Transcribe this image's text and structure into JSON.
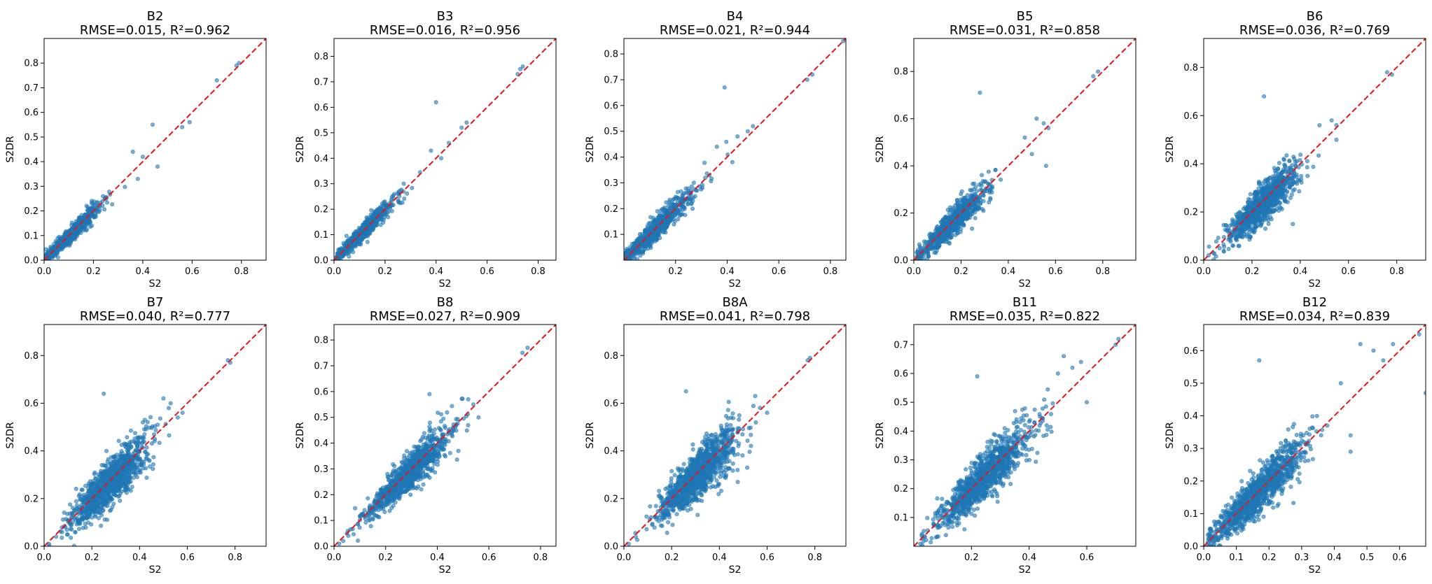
{
  "figure": {
    "type": "scatter-grid",
    "rows": 2,
    "cols": 5
  },
  "chart_data": [
    {
      "type": "scatter",
      "band": "B2",
      "title": "B2",
      "subtitle": "RMSE=0.015, R²=0.962",
      "xlabel": "S2",
      "ylabel": "S2DR",
      "xlim": [
        0,
        0.9
      ],
      "ylim": [
        0,
        0.9
      ],
      "xticks": [
        0.0,
        0.2,
        0.4,
        0.6,
        0.8
      ],
      "yticks": [
        0.0,
        0.1,
        0.2,
        0.3,
        0.4,
        0.5,
        0.6,
        0.7,
        0.8
      ],
      "rmse": 0.015,
      "r2": 0.962,
      "reference_line": "y = x",
      "cluster": {
        "n": 700,
        "x_center": 0.1,
        "x_spread": 0.06,
        "x_min": 0.005,
        "x_max": 0.35,
        "slope": 0.98,
        "noise": 0.022
      },
      "points": [
        {
          "x": 0.44,
          "y": 0.55
        },
        {
          "x": 0.46,
          "y": 0.38
        },
        {
          "x": 0.56,
          "y": 0.54
        },
        {
          "x": 0.59,
          "y": 0.56
        },
        {
          "x": 0.7,
          "y": 0.73
        },
        {
          "x": 0.78,
          "y": 0.79
        },
        {
          "x": 0.79,
          "y": 0.8
        },
        {
          "x": 0.36,
          "y": 0.44
        },
        {
          "x": 0.4,
          "y": 0.42
        },
        {
          "x": 0.38,
          "y": 0.33
        }
      ]
    },
    {
      "type": "scatter",
      "band": "B3",
      "title": "B3",
      "subtitle": "RMSE=0.016, R²=0.956",
      "xlabel": "S2",
      "ylabel": "S2DR",
      "xlim": [
        0,
        0.87
      ],
      "ylim": [
        0,
        0.87
      ],
      "xticks": [
        0.0,
        0.2,
        0.4,
        0.6,
        0.8
      ],
      "yticks": [
        0.0,
        0.1,
        0.2,
        0.3,
        0.4,
        0.5,
        0.6,
        0.7,
        0.8
      ],
      "rmse": 0.016,
      "r2": 0.956,
      "reference_line": "y = x",
      "cluster": {
        "n": 700,
        "x_center": 0.11,
        "x_spread": 0.06,
        "x_min": 0.01,
        "x_max": 0.36,
        "slope": 0.98,
        "noise": 0.022
      },
      "points": [
        {
          "x": 0.4,
          "y": 0.62
        },
        {
          "x": 0.45,
          "y": 0.46
        },
        {
          "x": 0.5,
          "y": 0.52
        },
        {
          "x": 0.52,
          "y": 0.54
        },
        {
          "x": 0.72,
          "y": 0.73
        },
        {
          "x": 0.73,
          "y": 0.75
        },
        {
          "x": 0.74,
          "y": 0.76
        },
        {
          "x": 0.38,
          "y": 0.43
        },
        {
          "x": 0.42,
          "y": 0.4
        }
      ]
    },
    {
      "type": "scatter",
      "band": "B4",
      "title": "B4",
      "subtitle": "RMSE=0.021, R²=0.944",
      "xlabel": "S2",
      "ylabel": "S2DR",
      "xlim": [
        0,
        0.86
      ],
      "ylim": [
        0,
        0.86
      ],
      "xticks": [
        0.2,
        0.4,
        0.6,
        0.8
      ],
      "yticks": [
        0.1,
        0.2,
        0.3,
        0.4,
        0.5,
        0.6,
        0.7,
        0.8
      ],
      "rmse": 0.021,
      "r2": 0.944,
      "reference_line": "y = x",
      "cluster": {
        "n": 700,
        "x_center": 0.12,
        "x_spread": 0.08,
        "x_min": 0.005,
        "x_max": 0.42,
        "slope": 0.98,
        "noise": 0.03
      },
      "points": [
        {
          "x": 0.39,
          "y": 0.67
        },
        {
          "x": 0.44,
          "y": 0.48
        },
        {
          "x": 0.48,
          "y": 0.5
        },
        {
          "x": 0.5,
          "y": 0.52
        },
        {
          "x": 0.71,
          "y": 0.7
        },
        {
          "x": 0.73,
          "y": 0.72
        },
        {
          "x": 0.85,
          "y": 0.85
        },
        {
          "x": 0.42,
          "y": 0.38
        },
        {
          "x": 0.36,
          "y": 0.44
        }
      ]
    },
    {
      "type": "scatter",
      "band": "B5",
      "title": "B5",
      "subtitle": "RMSE=0.031, R²=0.858",
      "xlabel": "S2",
      "ylabel": "S2DR",
      "xlim": [
        0,
        0.94
      ],
      "ylim": [
        0,
        0.94
      ],
      "xticks": [
        0.0,
        0.2,
        0.4,
        0.6,
        0.8
      ],
      "yticks": [
        0.0,
        0.2,
        0.4,
        0.6,
        0.8
      ],
      "rmse": 0.031,
      "r2": 0.858,
      "reference_line": "y = x",
      "cluster": {
        "n": 750,
        "x_center": 0.16,
        "x_spread": 0.07,
        "x_min": 0.01,
        "x_max": 0.45,
        "slope": 0.97,
        "noise": 0.04
      },
      "points": [
        {
          "x": 0.28,
          "y": 0.71
        },
        {
          "x": 0.52,
          "y": 0.6
        },
        {
          "x": 0.55,
          "y": 0.58
        },
        {
          "x": 0.56,
          "y": 0.4
        },
        {
          "x": 0.57,
          "y": 0.56
        },
        {
          "x": 0.76,
          "y": 0.78
        },
        {
          "x": 0.78,
          "y": 0.8
        },
        {
          "x": 0.5,
          "y": 0.45
        },
        {
          "x": 0.47,
          "y": 0.52
        }
      ]
    },
    {
      "type": "scatter",
      "band": "B6",
      "title": "B6",
      "subtitle": "RMSE=0.036, R²=0.769",
      "xlabel": "S2",
      "ylabel": "S2DR",
      "xlim": [
        0,
        0.92
      ],
      "ylim": [
        0,
        0.92
      ],
      "xticks": [
        0.0,
        0.2,
        0.4,
        0.6,
        0.8
      ],
      "yticks": [
        0.0,
        0.2,
        0.4,
        0.6,
        0.8
      ],
      "rmse": 0.036,
      "r2": 0.769,
      "reference_line": "y = x",
      "cluster": {
        "n": 900,
        "x_center": 0.24,
        "x_spread": 0.07,
        "x_min": 0.01,
        "x_max": 0.5,
        "slope": 0.96,
        "noise": 0.045
      },
      "points": [
        {
          "x": 0.25,
          "y": 0.68
        },
        {
          "x": 0.48,
          "y": 0.56
        },
        {
          "x": 0.53,
          "y": 0.58
        },
        {
          "x": 0.55,
          "y": 0.5
        },
        {
          "x": 0.55,
          "y": 0.56
        },
        {
          "x": 0.76,
          "y": 0.78
        },
        {
          "x": 0.78,
          "y": 0.77
        },
        {
          "x": 0.02,
          "y": 0.02
        },
        {
          "x": 0.04,
          "y": 0.03
        }
      ]
    },
    {
      "type": "scatter",
      "band": "B7",
      "title": "B7",
      "subtitle": "RMSE=0.040, R²=0.777",
      "xlabel": "S2",
      "ylabel": "S2DR",
      "xlim": [
        0,
        0.93
      ],
      "ylim": [
        0,
        0.93
      ],
      "xticks": [
        0.0,
        0.2,
        0.4,
        0.6,
        0.8
      ],
      "yticks": [
        0.0,
        0.2,
        0.4,
        0.6,
        0.8
      ],
      "rmse": 0.04,
      "r2": 0.777,
      "reference_line": "y = x",
      "cluster": {
        "n": 1100,
        "x_center": 0.27,
        "x_spread": 0.08,
        "x_min": 0.02,
        "x_max": 0.55,
        "slope": 0.96,
        "noise": 0.05
      },
      "points": [
        {
          "x": 0.25,
          "y": 0.64
        },
        {
          "x": 0.5,
          "y": 0.62
        },
        {
          "x": 0.53,
          "y": 0.6
        },
        {
          "x": 0.56,
          "y": 0.54
        },
        {
          "x": 0.58,
          "y": 0.56
        },
        {
          "x": 0.77,
          "y": 0.78
        },
        {
          "x": 0.78,
          "y": 0.77
        },
        {
          "x": 0.02,
          "y": 0.01
        },
        {
          "x": 0.05,
          "y": 0.04
        }
      ]
    },
    {
      "type": "scatter",
      "band": "B8",
      "title": "B8",
      "subtitle": "RMSE=0.027, R²=0.909",
      "xlabel": "S2",
      "ylabel": "S2DR",
      "xlim": [
        0,
        0.86
      ],
      "ylim": [
        0,
        0.86
      ],
      "xticks": [
        0.0,
        0.2,
        0.4,
        0.6,
        0.8
      ],
      "yticks": [
        0.0,
        0.1,
        0.2,
        0.3,
        0.4,
        0.5,
        0.6,
        0.7,
        0.8
      ],
      "rmse": 0.027,
      "r2": 0.909,
      "reference_line": "y = x",
      "cluster": {
        "n": 1000,
        "x_center": 0.29,
        "x_spread": 0.08,
        "x_min": 0.01,
        "x_max": 0.52,
        "slope": 0.98,
        "noise": 0.035
      },
      "points": [
        {
          "x": 0.37,
          "y": 0.59
        },
        {
          "x": 0.52,
          "y": 0.57
        },
        {
          "x": 0.54,
          "y": 0.55
        },
        {
          "x": 0.56,
          "y": 0.5
        },
        {
          "x": 0.73,
          "y": 0.75
        },
        {
          "x": 0.75,
          "y": 0.77
        },
        {
          "x": 0.02,
          "y": 0.01
        },
        {
          "x": 0.05,
          "y": 0.05
        }
      ]
    },
    {
      "type": "scatter",
      "band": "B8A",
      "title": "B8A",
      "subtitle": "RMSE=0.041, R²=0.798",
      "xlabel": "S2",
      "ylabel": "S2DR",
      "xlim": [
        0,
        0.93
      ],
      "ylim": [
        0,
        0.93
      ],
      "xticks": [
        0.0,
        0.2,
        0.4,
        0.6,
        0.8
      ],
      "yticks": [
        0.0,
        0.2,
        0.4,
        0.6,
        0.8
      ],
      "rmse": 0.041,
      "r2": 0.798,
      "reference_line": "y = x",
      "cluster": {
        "n": 1100,
        "x_center": 0.31,
        "x_spread": 0.08,
        "x_min": 0.02,
        "x_max": 0.56,
        "slope": 0.97,
        "noise": 0.05
      },
      "points": [
        {
          "x": 0.26,
          "y": 0.65
        },
        {
          "x": 0.55,
          "y": 0.63
        },
        {
          "x": 0.57,
          "y": 0.58
        },
        {
          "x": 0.6,
          "y": 0.56
        },
        {
          "x": 0.77,
          "y": 0.78
        },
        {
          "x": 0.78,
          "y": 0.79
        },
        {
          "x": 0.02,
          "y": 0.01
        },
        {
          "x": 0.05,
          "y": 0.04
        }
      ]
    },
    {
      "type": "scatter",
      "band": "B11",
      "title": "B11",
      "subtitle": "RMSE=0.035, R²=0.822",
      "xlabel": "S2",
      "ylabel": "S2DR",
      "xlim": [
        0,
        0.77
      ],
      "ylim": [
        0,
        0.77
      ],
      "xticks": [
        0.2,
        0.4,
        0.6
      ],
      "yticks": [
        0.1,
        0.2,
        0.3,
        0.4,
        0.5,
        0.6,
        0.7
      ],
      "rmse": 0.035,
      "r2": 0.822,
      "reference_line": "y = x",
      "cluster": {
        "n": 1100,
        "x_center": 0.24,
        "x_spread": 0.08,
        "x_min": 0.02,
        "x_max": 0.55,
        "slope": 0.98,
        "noise": 0.045
      },
      "points": [
        {
          "x": 0.22,
          "y": 0.59
        },
        {
          "x": 0.5,
          "y": 0.6
        },
        {
          "x": 0.52,
          "y": 0.66
        },
        {
          "x": 0.55,
          "y": 0.62
        },
        {
          "x": 0.58,
          "y": 0.64
        },
        {
          "x": 0.7,
          "y": 0.7
        },
        {
          "x": 0.71,
          "y": 0.72
        },
        {
          "x": 0.6,
          "y": 0.5
        }
      ]
    },
    {
      "type": "scatter",
      "band": "B12",
      "title": "B12",
      "subtitle": "RMSE=0.034, R²=0.839",
      "xlabel": "S2",
      "ylabel": "S2DR",
      "xlim": [
        0,
        0.68
      ],
      "ylim": [
        0,
        0.68
      ],
      "xticks": [
        0.0,
        0.1,
        0.2,
        0.3,
        0.4,
        0.5,
        0.6
      ],
      "yticks": [
        0.0,
        0.1,
        0.2,
        0.3,
        0.4,
        0.5,
        0.6
      ],
      "rmse": 0.034,
      "r2": 0.839,
      "reference_line": "y = x",
      "cluster": {
        "n": 1050,
        "x_center": 0.17,
        "x_spread": 0.07,
        "x_min": 0.01,
        "x_max": 0.46,
        "slope": 0.98,
        "noise": 0.04
      },
      "points": [
        {
          "x": 0.17,
          "y": 0.57
        },
        {
          "x": 0.48,
          "y": 0.62
        },
        {
          "x": 0.52,
          "y": 0.6
        },
        {
          "x": 0.55,
          "y": 0.57
        },
        {
          "x": 0.58,
          "y": 0.62
        },
        {
          "x": 0.66,
          "y": 0.65
        },
        {
          "x": 0.68,
          "y": 0.47
        },
        {
          "x": 0.45,
          "y": 0.34
        },
        {
          "x": 0.42,
          "y": 0.5
        },
        {
          "x": 0.45,
          "y": 0.29
        }
      ]
    }
  ]
}
